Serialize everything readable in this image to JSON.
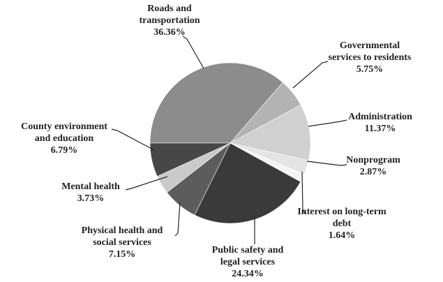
{
  "chart_data": {
    "type": "pie",
    "categories": [
      "Roads and transportation",
      "Governmental services to residents",
      "Administration",
      "Nonprogram",
      "Interest on long-term debt",
      "Public safety and legal services",
      "Physical health and social services",
      "Mental health",
      "County environment and education"
    ],
    "values": [
      36.36,
      5.75,
      11.37,
      2.87,
      1.64,
      24.34,
      7.15,
      3.73,
      6.79
    ],
    "value_labels": [
      "36.36%",
      "5.75%",
      "11.37%",
      "2.87%",
      "1.64%",
      "24.34%",
      "7.15%",
      "3.73%",
      "6.79%"
    ],
    "colors": [
      "#8c8c8c",
      "#b3b3b3",
      "#d0d0d0",
      "#e4e4e4",
      "#f4f4f4",
      "#3a3a3a",
      "#5c5c5c",
      "#cacaca",
      "#474747"
    ]
  }
}
